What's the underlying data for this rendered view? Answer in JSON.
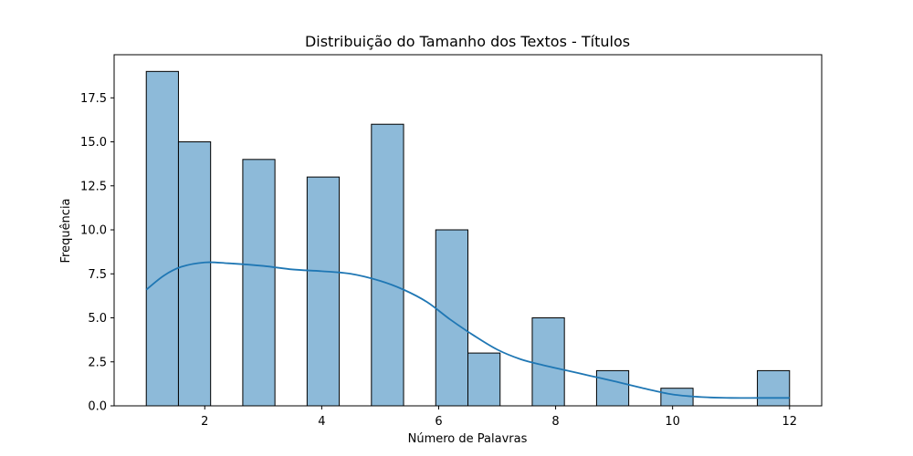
{
  "chart_data": {
    "type": "bar",
    "title": "Distribuição do Tamanho dos Textos - Títulos",
    "xlabel": "Número de Palavras",
    "ylabel": "Frequência",
    "xlim": [
      0.45,
      12.55
    ],
    "ylim": [
      0,
      19.95
    ],
    "x_ticks": [
      2,
      4,
      6,
      8,
      10,
      12
    ],
    "y_ticks": [
      0.0,
      2.5,
      5.0,
      7.5,
      10.0,
      12.5,
      15.0,
      17.5
    ],
    "y_tick_labels": [
      "0.0",
      "2.5",
      "5.0",
      "7.5",
      "10.0",
      "12.5",
      "15.0",
      "17.5"
    ],
    "bins": [
      {
        "x0": 1.0,
        "x1": 1.55,
        "count": 19
      },
      {
        "x0": 1.55,
        "x1": 2.1,
        "count": 15
      },
      {
        "x0": 2.65,
        "x1": 3.2,
        "count": 14
      },
      {
        "x0": 3.75,
        "x1": 4.3,
        "count": 13
      },
      {
        "x0": 4.85,
        "x1": 5.4,
        "count": 16
      },
      {
        "x0": 5.95,
        "x1": 6.5,
        "count": 10
      },
      {
        "x0": 6.5,
        "x1": 7.05,
        "count": 3
      },
      {
        "x0": 7.6,
        "x1": 8.15,
        "count": 5
      },
      {
        "x0": 8.7,
        "x1": 9.25,
        "count": 2
      },
      {
        "x0": 9.8,
        "x1": 10.35,
        "count": 1
      },
      {
        "x0": 11.45,
        "x1": 12.0,
        "count": 2
      }
    ],
    "kde": {
      "x": [
        1.0,
        1.3,
        1.6,
        2.0,
        2.4,
        3.0,
        3.5,
        4.0,
        4.5,
        5.0,
        5.4,
        5.8,
        6.2,
        6.6,
        7.0,
        7.4,
        7.8,
        8.2,
        8.6,
        9.0,
        9.5,
        10.0,
        10.5,
        11.0,
        11.5,
        12.0
      ],
      "y": [
        6.6,
        7.4,
        7.9,
        8.15,
        8.1,
        7.95,
        7.75,
        7.65,
        7.5,
        7.1,
        6.6,
        5.9,
        4.9,
        4.0,
        3.2,
        2.65,
        2.3,
        2.0,
        1.7,
        1.4,
        1.0,
        0.65,
        0.5,
        0.45,
        0.45,
        0.45
      ]
    },
    "colors": {
      "bar_fill": "#8dbad9",
      "bar_edge": "#000000",
      "kde_line": "#1f77b4"
    },
    "grid": false
  }
}
